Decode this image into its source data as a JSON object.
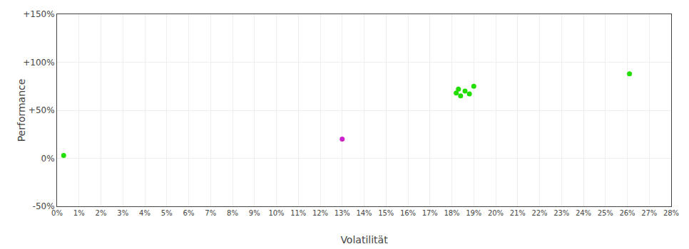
{
  "chart_data": {
    "type": "scatter",
    "xlabel": "Volatilität",
    "ylabel": "Performance",
    "xlim": [
      0,
      0.28
    ],
    "ylim": [
      -0.5,
      1.5
    ],
    "xticks": [
      {
        "value": 0,
        "label": "0%"
      },
      {
        "value": 0.01,
        "label": "1%"
      },
      {
        "value": 0.02,
        "label": "2%"
      },
      {
        "value": 0.03,
        "label": "3%"
      },
      {
        "value": 0.04,
        "label": "4%"
      },
      {
        "value": 0.05,
        "label": "5%"
      },
      {
        "value": 0.06,
        "label": "6%"
      },
      {
        "value": 0.07,
        "label": "7%"
      },
      {
        "value": 0.08,
        "label": "8%"
      },
      {
        "value": 0.09,
        "label": "9%"
      },
      {
        "value": 0.1,
        "label": "10%"
      },
      {
        "value": 0.11,
        "label": "11%"
      },
      {
        "value": 0.12,
        "label": "12%"
      },
      {
        "value": 0.13,
        "label": "13%"
      },
      {
        "value": 0.14,
        "label": "14%"
      },
      {
        "value": 0.15,
        "label": "15%"
      },
      {
        "value": 0.16,
        "label": "16%"
      },
      {
        "value": 0.17,
        "label": "17%"
      },
      {
        "value": 0.18,
        "label": "18%"
      },
      {
        "value": 0.19,
        "label": "19%"
      },
      {
        "value": 0.2,
        "label": "20%"
      },
      {
        "value": 0.21,
        "label": "21%"
      },
      {
        "value": 0.22,
        "label": "22%"
      },
      {
        "value": 0.23,
        "label": "23%"
      },
      {
        "value": 0.24,
        "label": "24%"
      },
      {
        "value": 0.25,
        "label": "25%"
      },
      {
        "value": 0.26,
        "label": "26%"
      },
      {
        "value": 0.27,
        "label": "27%"
      },
      {
        "value": 0.28,
        "label": "28%"
      }
    ],
    "yticks": [
      {
        "value": -0.5,
        "label": "-50%"
      },
      {
        "value": 0.0,
        "label": "0%"
      },
      {
        "value": 0.5,
        "label": "+50%"
      },
      {
        "value": 1.0,
        "label": "+100%"
      },
      {
        "value": 1.5,
        "label": "+150%"
      }
    ],
    "grid": true,
    "series": [
      {
        "color": "#22dd00",
        "x": [
          0.003,
          0.182,
          0.183,
          0.184,
          0.186,
          0.188,
          0.19,
          0.261
        ],
        "values": [
          0.03,
          0.68,
          0.72,
          0.65,
          0.7,
          0.67,
          0.75,
          0.88
        ]
      },
      {
        "color": "#cc22cc",
        "x": [
          0.13
        ],
        "values": [
          0.2
        ]
      }
    ]
  }
}
